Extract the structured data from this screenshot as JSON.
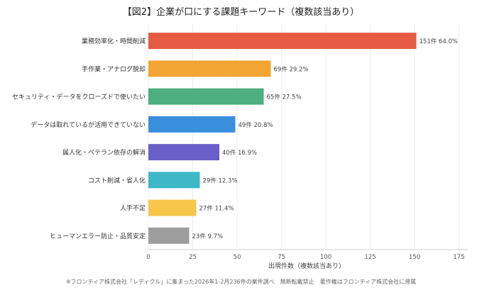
{
  "chart_data": {
    "type": "bar",
    "orientation": "horizontal",
    "title": "【図2】企業が口にする課題キーワード（複数該当あり）",
    "xlabel": "出現件数（複数該当あり）",
    "ylabel": "",
    "xlim": [
      0,
      180
    ],
    "xticks": [
      "0",
      "25",
      "50",
      "75",
      "100",
      "125",
      "150",
      "175"
    ],
    "grid": true,
    "categories": [
      "業務効率化・時間削減",
      "手作業・アナログ脱却",
      "セキュリティ・データをクローズドで使いたい",
      "データは取れているが活用できていない",
      "属人化・ベテラン依存の解消",
      "コスト削減・省人化",
      "人手不足",
      "ヒューマンエラー防止・品質安定"
    ],
    "values": [
      151,
      69,
      65,
      49,
      40,
      29,
      27,
      23
    ],
    "bar_labels": [
      "151件  64.0%",
      "69件  29.2%",
      "65件  27.5%",
      "49件  20.8%",
      "40件  16.9%",
      "29件  12.3%",
      "27件  11.4%",
      "23件  9.7%"
    ],
    "colors": [
      "#e55a43",
      "#f3a532",
      "#4caf7d",
      "#3a8fdd",
      "#6a5fc8",
      "#3eb8c6",
      "#f5c64a",
      "#9e9e9e"
    ],
    "footnote": "※フロンティア株式会社「レディクル」に集まった2026年1-2月236件の案件調べ　無断転載禁止　著作権はフロンティア株式会社に帰属"
  }
}
